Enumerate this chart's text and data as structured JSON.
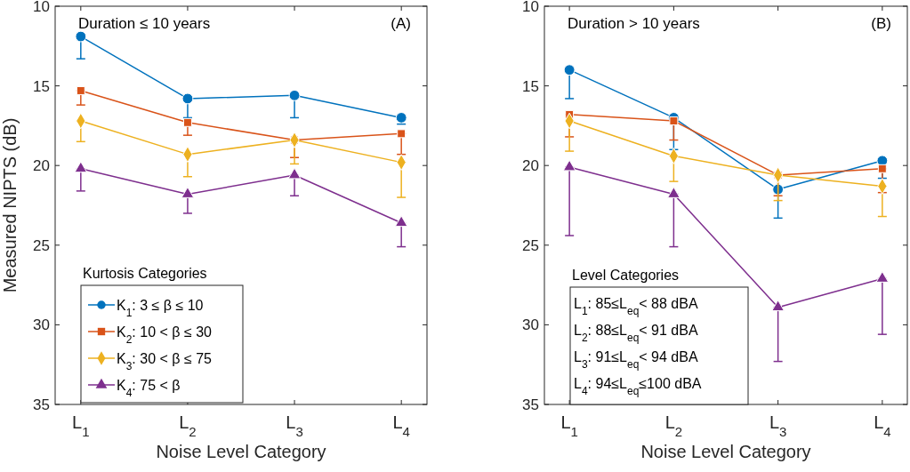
{
  "chart_data": [
    {
      "type": "line",
      "annotations": [
        "Duration ≤ 10 years",
        "(A)"
      ],
      "xlabel": "Noise Level Category",
      "ylabel": "Measured NIPTS (dB)",
      "categories": [
        "L$_{1}$",
        "L$_{2}$",
        "L$_{3}$",
        "L$_{4}$"
      ],
      "ylim": [
        35,
        10
      ],
      "yticks": [
        10,
        15,
        20,
        25,
        30,
        35
      ],
      "legend": "bottom left",
      "legend_title": "Kurtosis Categories",
      "grid": false,
      "series": [
        {
          "name": "K$_{1}$:   3 ≤ β ≤ 10",
          "color": "#0072bd",
          "marker": "circle",
          "values": [
            11.9,
            15.8,
            15.6,
            17.0
          ],
          "errors": [
            [
              11.9,
              13.3
            ],
            [
              15.8,
              17.0
            ],
            [
              15.6,
              17.0
            ],
            [
              17.0,
              17.4
            ]
          ]
        },
        {
          "name": "K$_{2}$: 10 < β ≤ 30",
          "color": "#d95319",
          "marker": "square",
          "values": [
            15.3,
            17.3,
            18.4,
            18.0
          ],
          "errors": [
            [
              15.3,
              16.2
            ],
            [
              17.3,
              18.1
            ],
            [
              18.4,
              19.5
            ],
            [
              18.0,
              19.3
            ]
          ]
        },
        {
          "name": "K$_{3}$: 30 < β ≤ 75",
          "color": "#edb120",
          "marker": "diamond",
          "values": [
            17.2,
            19.3,
            18.4,
            19.8
          ],
          "errors": [
            [
              17.2,
              18.5
            ],
            [
              19.3,
              20.7
            ],
            [
              18.4,
              19.9
            ],
            [
              19.8,
              22.0
            ]
          ]
        },
        {
          "name": "K$_{4}$: 75 < β",
          "color": "#7e2f8e",
          "marker": "triangle",
          "values": [
            20.2,
            21.8,
            20.6,
            23.6
          ],
          "errors": [
            [
              20.2,
              21.6
            ],
            [
              21.8,
              23.0
            ],
            [
              20.6,
              21.9
            ],
            [
              23.6,
              25.1
            ]
          ]
        }
      ]
    },
    {
      "type": "line",
      "annotations": [
        "Duration > 10 years",
        "(B)",
        "Level Categories",
        "L$_{1}$: 85≤L$_{eq}$< 88 dBA",
        "L$_{2}$: 88≤L$_{eq}$< 91 dBA",
        "L$_{3}$: 91≤L$_{eq}$< 94 dBA",
        "L$_{4}$: 94≤L$_{eq}$≤100 dBA"
      ],
      "xlabel": "Noise Level Category",
      "categories": [
        "L$_{1}$",
        "L$_{2}$",
        "L$_{3}$",
        "L$_{4}$"
      ],
      "ylim": [
        35,
        10
      ],
      "yticks": [
        10,
        15,
        20,
        25,
        30,
        35
      ],
      "legend": false,
      "grid": false,
      "series": [
        {
          "color": "#0072bd",
          "marker": "circle",
          "values": [
            14.0,
            17.0,
            21.5,
            19.7
          ],
          "errors": [
            [
              14.0,
              15.8
            ],
            [
              17.0,
              19.0
            ],
            [
              21.5,
              23.3
            ],
            [
              19.7,
              20.8
            ]
          ]
        },
        {
          "color": "#d95319",
          "marker": "square",
          "values": [
            16.8,
            17.2,
            20.6,
            20.2
          ],
          "errors": [
            [
              16.8,
              18.2
            ],
            [
              17.2,
              18.4
            ],
            [
              20.6,
              21.9
            ],
            [
              20.2,
              21.7
            ]
          ]
        },
        {
          "color": "#edb120",
          "marker": "diamond",
          "values": [
            17.2,
            19.4,
            20.6,
            21.3
          ],
          "errors": [
            [
              17.2,
              19.1
            ],
            [
              19.4,
              21.0
            ],
            [
              20.6,
              22.2
            ],
            [
              21.3,
              23.2
            ]
          ]
        },
        {
          "color": "#7e2f8e",
          "marker": "triangle",
          "values": [
            20.1,
            21.8,
            28.9,
            27.1
          ],
          "errors": [
            [
              20.1,
              24.4
            ],
            [
              21.8,
              25.1
            ],
            [
              28.9,
              32.3
            ],
            [
              27.1,
              30.6
            ]
          ]
        }
      ]
    }
  ]
}
